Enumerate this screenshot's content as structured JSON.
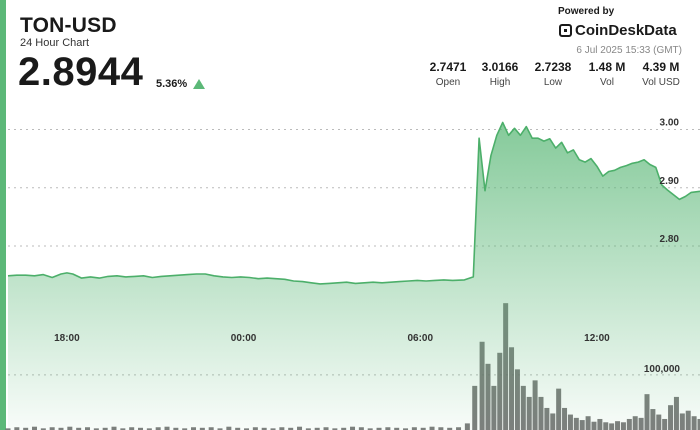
{
  "header": {
    "symbol": "TON-USD",
    "subtitle": "24 Hour Chart",
    "price": "2.8944",
    "change": "5.36%",
    "direction_icon": "triangle-up-icon",
    "powered_by": "Powered by",
    "brand": "CoinDeskData",
    "timestamp": "6 Jul 2025 15:33 (GMT)"
  },
  "stats": [
    {
      "value": "2.7471",
      "label": "Open"
    },
    {
      "value": "3.0166",
      "label": "High"
    },
    {
      "value": "2.7238",
      "label": "Low"
    },
    {
      "value": "1.48 M",
      "label": "Vol"
    },
    {
      "value": "4.39 M",
      "label": "Vol USD"
    }
  ],
  "colors": {
    "accent": "#5cb878",
    "line": "#4caf6a",
    "volume": "#666666",
    "grid": "#bbbbbb"
  },
  "chart_data": {
    "type": "area",
    "x_ticks": [
      {
        "label": "18:00",
        "hour": 2
      },
      {
        "label": "00:00",
        "hour": 8
      },
      {
        "label": "06:00",
        "hour": 14
      },
      {
        "label": "12:00",
        "hour": 20
      }
    ],
    "y_ticks": [
      2.8,
      2.9,
      3.0
    ],
    "ylim": [
      2.68,
      3.03
    ],
    "xlim": [
      0,
      23.5
    ],
    "price_series": [
      [
        0.0,
        2.749
      ],
      [
        0.3,
        2.75
      ],
      [
        0.6,
        2.75
      ],
      [
        0.9,
        2.749
      ],
      [
        1.2,
        2.751
      ],
      [
        1.5,
        2.746
      ],
      [
        1.8,
        2.752
      ],
      [
        2.0,
        2.754
      ],
      [
        2.2,
        2.752
      ],
      [
        2.5,
        2.745
      ],
      [
        2.8,
        2.747
      ],
      [
        3.1,
        2.745
      ],
      [
        3.4,
        2.748
      ],
      [
        3.7,
        2.749
      ],
      [
        4.0,
        2.747
      ],
      [
        4.3,
        2.748
      ],
      [
        4.6,
        2.749
      ],
      [
        4.9,
        2.746
      ],
      [
        5.2,
        2.748
      ],
      [
        5.5,
        2.749
      ],
      [
        5.8,
        2.75
      ],
      [
        6.1,
        2.751
      ],
      [
        6.4,
        2.752
      ],
      [
        6.7,
        2.752
      ],
      [
        7.0,
        2.749
      ],
      [
        7.3,
        2.747
      ],
      [
        7.6,
        2.746
      ],
      [
        7.9,
        2.747
      ],
      [
        8.2,
        2.746
      ],
      [
        8.5,
        2.744
      ],
      [
        8.8,
        2.745
      ],
      [
        9.1,
        2.744
      ],
      [
        9.4,
        2.743
      ],
      [
        9.7,
        2.74
      ],
      [
        10.0,
        2.739
      ],
      [
        10.3,
        2.737
      ],
      [
        10.6,
        2.735
      ],
      [
        10.9,
        2.736
      ],
      [
        11.2,
        2.737
      ],
      [
        11.5,
        2.738
      ],
      [
        11.8,
        2.736
      ],
      [
        12.1,
        2.737
      ],
      [
        12.4,
        2.738
      ],
      [
        12.7,
        2.737
      ],
      [
        13.0,
        2.738
      ],
      [
        13.3,
        2.739
      ],
      [
        13.6,
        2.74
      ],
      [
        13.9,
        2.741
      ],
      [
        14.2,
        2.74
      ],
      [
        14.5,
        2.741
      ],
      [
        14.8,
        2.742
      ],
      [
        15.1,
        2.741
      ],
      [
        15.5,
        2.742
      ],
      [
        15.8,
        2.747
      ],
      [
        16.0,
        2.985
      ],
      [
        16.2,
        2.895
      ],
      [
        16.4,
        2.955
      ],
      [
        16.6,
        2.99
      ],
      [
        16.8,
        3.012
      ],
      [
        17.0,
        2.99
      ],
      [
        17.2,
        3.002
      ],
      [
        17.4,
        2.99
      ],
      [
        17.6,
        3.005
      ],
      [
        17.8,
        2.985
      ],
      [
        18.0,
        2.985
      ],
      [
        18.2,
        2.98
      ],
      [
        18.4,
        2.984
      ],
      [
        18.6,
        2.968
      ],
      [
        18.8,
        2.978
      ],
      [
        19.0,
        2.96
      ],
      [
        19.2,
        2.965
      ],
      [
        19.4,
        2.948
      ],
      [
        19.6,
        2.944
      ],
      [
        19.8,
        2.95
      ],
      [
        20.0,
        2.937
      ],
      [
        20.2,
        2.92
      ],
      [
        20.4,
        2.928
      ],
      [
        20.6,
        2.93
      ],
      [
        20.8,
        2.935
      ],
      [
        21.0,
        2.938
      ],
      [
        21.2,
        2.942
      ],
      [
        21.4,
        2.944
      ],
      [
        21.6,
        2.948
      ],
      [
        21.8,
        2.94
      ],
      [
        22.0,
        2.935
      ],
      [
        22.2,
        2.905
      ],
      [
        22.4,
        2.896
      ],
      [
        22.6,
        2.888
      ],
      [
        22.8,
        2.88
      ],
      [
        23.0,
        2.885
      ],
      [
        23.2,
        2.892
      ],
      [
        23.5,
        2.894
      ]
    ],
    "volume_axis_label": "100,000",
    "volume_axis_value": 100000,
    "volume_max": 330000,
    "volume_series": [
      [
        0.0,
        3000
      ],
      [
        0.3,
        5000
      ],
      [
        0.6,
        4000
      ],
      [
        0.9,
        6000
      ],
      [
        1.2,
        3000
      ],
      [
        1.5,
        5000
      ],
      [
        1.8,
        4000
      ],
      [
        2.1,
        6000
      ],
      [
        2.4,
        4000
      ],
      [
        2.7,
        5000
      ],
      [
        3.0,
        3000
      ],
      [
        3.3,
        4000
      ],
      [
        3.6,
        6000
      ],
      [
        3.9,
        3000
      ],
      [
        4.2,
        5000
      ],
      [
        4.5,
        4000
      ],
      [
        4.8,
        3000
      ],
      [
        5.1,
        5000
      ],
      [
        5.4,
        6000
      ],
      [
        5.7,
        4000
      ],
      [
        6.0,
        3000
      ],
      [
        6.3,
        5000
      ],
      [
        6.6,
        4000
      ],
      [
        6.9,
        5000
      ],
      [
        7.2,
        3000
      ],
      [
        7.5,
        6000
      ],
      [
        7.8,
        4000
      ],
      [
        8.1,
        3000
      ],
      [
        8.4,
        5000
      ],
      [
        8.7,
        4000
      ],
      [
        9.0,
        3000
      ],
      [
        9.3,
        5000
      ],
      [
        9.6,
        4000
      ],
      [
        9.9,
        6000
      ],
      [
        10.2,
        3000
      ],
      [
        10.5,
        4000
      ],
      [
        10.8,
        5000
      ],
      [
        11.1,
        3000
      ],
      [
        11.4,
        4000
      ],
      [
        11.7,
        6000
      ],
      [
        12.0,
        5000
      ],
      [
        12.3,
        3000
      ],
      [
        12.6,
        4000
      ],
      [
        12.9,
        5000
      ],
      [
        13.2,
        4000
      ],
      [
        13.5,
        3000
      ],
      [
        13.8,
        5000
      ],
      [
        14.1,
        4000
      ],
      [
        14.4,
        6000
      ],
      [
        14.7,
        5000
      ],
      [
        15.0,
        4000
      ],
      [
        15.3,
        5000
      ],
      [
        15.6,
        12000
      ],
      [
        15.85,
        80000
      ],
      [
        16.1,
        160000
      ],
      [
        16.3,
        120000
      ],
      [
        16.5,
        80000
      ],
      [
        16.7,
        140000
      ],
      [
        16.9,
        230000
      ],
      [
        17.1,
        150000
      ],
      [
        17.3,
        110000
      ],
      [
        17.5,
        80000
      ],
      [
        17.7,
        60000
      ],
      [
        17.9,
        90000
      ],
      [
        18.1,
        60000
      ],
      [
        18.3,
        40000
      ],
      [
        18.5,
        30000
      ],
      [
        18.7,
        75000
      ],
      [
        18.9,
        40000
      ],
      [
        19.1,
        28000
      ],
      [
        19.3,
        22000
      ],
      [
        19.5,
        18000
      ],
      [
        19.7,
        25000
      ],
      [
        19.9,
        15000
      ],
      [
        20.1,
        20000
      ],
      [
        20.3,
        14000
      ],
      [
        20.5,
        12000
      ],
      [
        20.7,
        16000
      ],
      [
        20.9,
        14000
      ],
      [
        21.1,
        20000
      ],
      [
        21.3,
        25000
      ],
      [
        21.5,
        22000
      ],
      [
        21.7,
        65000
      ],
      [
        21.9,
        38000
      ],
      [
        22.1,
        28000
      ],
      [
        22.3,
        20000
      ],
      [
        22.5,
        45000
      ],
      [
        22.7,
        60000
      ],
      [
        22.9,
        30000
      ],
      [
        23.1,
        35000
      ],
      [
        23.3,
        25000
      ],
      [
        23.5,
        20000
      ]
    ]
  }
}
